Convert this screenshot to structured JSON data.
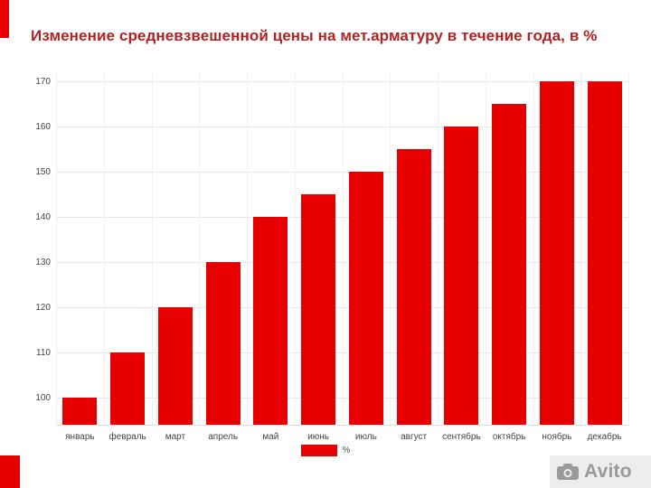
{
  "title": "Изменение средневзвешенной цены на мет.арматуру в течение года, в %",
  "legend": {
    "label": "%"
  },
  "watermark": {
    "brand": "Avito"
  },
  "colors": {
    "bar": "#e60000",
    "title": "#b22222",
    "grid_h": "#e8e8e8",
    "grid_v": "#efefef",
    "axis_text": "#444444",
    "accent": "#e60000",
    "watermark_text": "#9a9a9a",
    "watermark_bg": "#ededed"
  },
  "chart_data": {
    "type": "bar",
    "title": "Изменение средневзвешенной цены на мет.арматуру в течение года, в %",
    "categories": [
      "январь",
      "февраль",
      "март",
      "апрель",
      "май",
      "июнь",
      "июль",
      "август",
      "сентябрь",
      "октябрь",
      "ноябрь",
      "декабрь"
    ],
    "values": [
      100,
      110,
      120,
      130,
      140,
      145,
      150,
      155,
      160,
      165,
      170,
      170
    ],
    "xlabel": "",
    "ylabel": "",
    "ylim": [
      94,
      170
    ],
    "yticks": [
      100,
      110,
      120,
      130,
      140,
      150,
      160,
      170
    ],
    "legend": [
      "%"
    ],
    "legend_position": "bottom",
    "grid": true,
    "bar_color": "#e60000"
  }
}
